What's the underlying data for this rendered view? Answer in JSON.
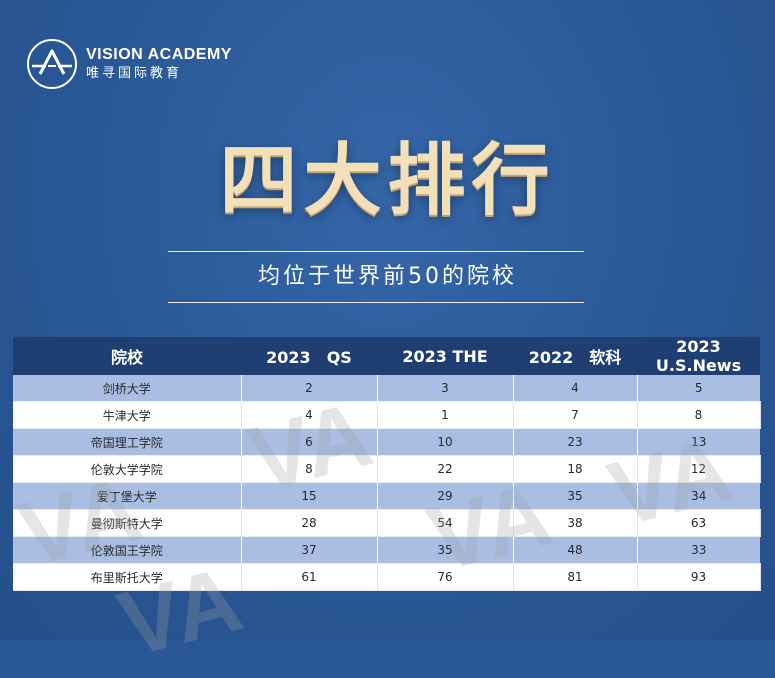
{
  "brand": {
    "name_en": "VISION ACADEMY",
    "name_cn": "唯寻国际教育",
    "logo_icon": "a-triangle-logo-icon"
  },
  "title": "四大排行",
  "subtitle": "均位于世界前50的院校",
  "table": {
    "headers": [
      "院校",
      "2023　QS",
      "2023 THE",
      "2022　软科",
      "2023 U.S.News"
    ],
    "rows": [
      [
        "剑桥大学",
        "2",
        "3",
        "4",
        "5"
      ],
      [
        "牛津大学",
        "4",
        "1",
        "7",
        "8"
      ],
      [
        "帝国理工学院",
        "6",
        "10",
        "23",
        "13"
      ],
      [
        "伦敦大学学院",
        "8",
        "22",
        "18",
        "12"
      ],
      [
        "爱丁堡大学",
        "15",
        "29",
        "35",
        "34"
      ],
      [
        "曼彻斯特大学",
        "28",
        "54",
        "38",
        "63"
      ],
      [
        "伦敦国王学院",
        "37",
        "35",
        "48",
        "33"
      ],
      [
        "布里斯托大学",
        "61",
        "76",
        "81",
        "93"
      ]
    ]
  },
  "watermark_text": "VA",
  "colors": {
    "background": "#2a5896",
    "header": "#1f3f72",
    "row_alt": "#a9bee2",
    "title_gold": "#f3dfb8"
  }
}
